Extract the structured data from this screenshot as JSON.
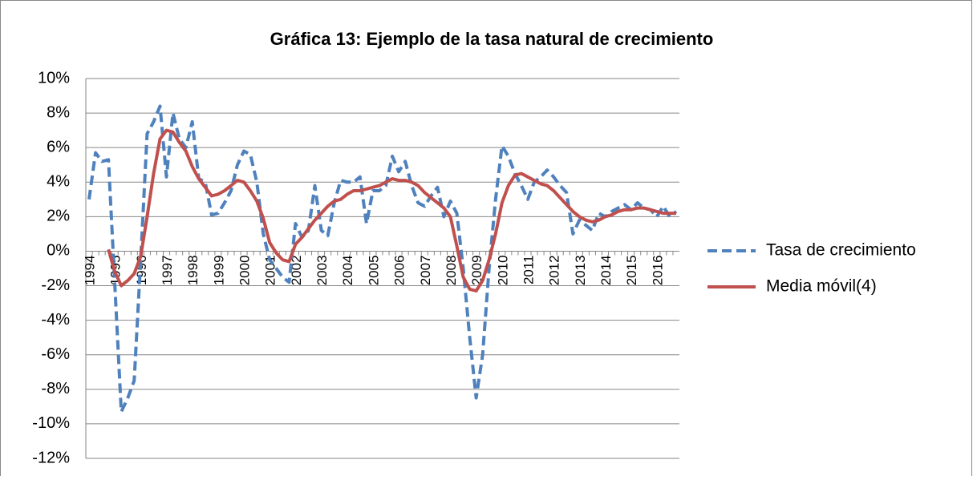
{
  "chart_data": {
    "type": "line",
    "title": "Gráfica 13: Ejemplo de la tasa natural de crecimiento",
    "categories": [
      "1994",
      null,
      null,
      null,
      "1995",
      null,
      null,
      null,
      "1996",
      null,
      null,
      null,
      "1997",
      null,
      null,
      null,
      "1998",
      null,
      null,
      null,
      "1999",
      null,
      null,
      null,
      "2000",
      null,
      null,
      null,
      "2001",
      null,
      null,
      null,
      "2002",
      null,
      null,
      null,
      "2003",
      null,
      null,
      null,
      "2004",
      null,
      null,
      null,
      "2005",
      null,
      null,
      null,
      "2006",
      null,
      null,
      null,
      "2007",
      null,
      null,
      null,
      "2008",
      null,
      null,
      null,
      "2009",
      null,
      null,
      null,
      "2010",
      null,
      null,
      null,
      "2011",
      null,
      null,
      null,
      "2012",
      null,
      null,
      null,
      "2013",
      null,
      null,
      null,
      "2014",
      null,
      null,
      null,
      "2015",
      null,
      null,
      null,
      "2016",
      null,
      null,
      null
    ],
    "series": [
      {
        "name": "Tasa de crecimiento",
        "color": "#4f81bd",
        "dashed": true,
        "values": [
          3.0,
          5.7,
          5.2,
          5.3,
          -2.0,
          -9.3,
          -8.5,
          -7.5,
          -0.5,
          6.8,
          7.5,
          8.4,
          4.3,
          8.0,
          6.5,
          6.0,
          7.5,
          4.2,
          4.0,
          2.1,
          2.2,
          2.8,
          3.5,
          5.0,
          5.8,
          5.6,
          4.0,
          1.0,
          -0.5,
          -1.0,
          -1.5,
          -1.8,
          1.6,
          0.8,
          1.2,
          3.8,
          1.2,
          0.9,
          2.8,
          4.1,
          4.0,
          4.0,
          4.3,
          1.6,
          3.5,
          3.5,
          3.8,
          5.5,
          4.6,
          5.2,
          3.8,
          2.8,
          2.6,
          3.2,
          3.7,
          2.0,
          2.9,
          2.2,
          -1.0,
          -5.0,
          -8.5,
          -6.0,
          -1.0,
          3.0,
          6.1,
          5.5,
          4.5,
          3.8,
          3.0,
          4.0,
          4.3,
          4.7,
          4.3,
          3.8,
          3.4,
          1.0,
          1.8,
          1.5,
          1.2,
          2.2,
          2.0,
          2.3,
          2.5,
          2.7,
          2.4,
          2.8,
          2.5,
          2.4,
          2.0,
          2.6,
          2.0,
          2.3
        ]
      },
      {
        "name": "Media móvil(4)",
        "color": "#c0504d",
        "dashed": false,
        "values": [
          null,
          null,
          null,
          0.1,
          -1.2,
          -2.0,
          -1.7,
          -1.3,
          -0.3,
          2.0,
          4.5,
          6.5,
          7.0,
          6.9,
          6.3,
          5.8,
          4.9,
          4.2,
          3.7,
          3.2,
          3.3,
          3.5,
          3.8,
          4.1,
          4.0,
          3.5,
          2.9,
          1.9,
          0.5,
          -0.1,
          -0.5,
          -0.6,
          0.4,
          0.8,
          1.3,
          1.8,
          2.2,
          2.6,
          2.9,
          3.0,
          3.3,
          3.5,
          3.5,
          3.6,
          3.7,
          3.8,
          4.0,
          4.2,
          4.1,
          4.1,
          4.0,
          3.8,
          3.4,
          3.1,
          2.8,
          2.5,
          2.0,
          0.3,
          -1.5,
          -2.2,
          -2.3,
          -1.7,
          -0.5,
          1.0,
          2.8,
          3.8,
          4.4,
          4.5,
          4.3,
          4.1,
          3.9,
          3.8,
          3.5,
          3.1,
          2.7,
          2.3,
          2.0,
          1.8,
          1.7,
          1.8,
          2.0,
          2.1,
          2.3,
          2.4,
          2.4,
          2.5,
          2.5,
          2.4,
          2.3,
          2.2,
          2.2,
          2.2
        ]
      }
    ],
    "ylim": [
      -12,
      10
    ],
    "yticks": [
      {
        "value": -12,
        "label": "-12%"
      },
      {
        "value": -10,
        "label": "-10%"
      },
      {
        "value": -8,
        "label": "-8%"
      },
      {
        "value": -6,
        "label": "-6%"
      },
      {
        "value": -4,
        "label": "-4%"
      },
      {
        "value": -2,
        "label": "-2%"
      },
      {
        "value": 0,
        "label": "0%"
      },
      {
        "value": 2,
        "label": "2%"
      },
      {
        "value": 4,
        "label": "4%"
      },
      {
        "value": 6,
        "label": "6%"
      },
      {
        "value": 8,
        "label": "8%"
      },
      {
        "value": 10,
        "label": "10%"
      }
    ],
    "grid": true,
    "legend": "right"
  }
}
